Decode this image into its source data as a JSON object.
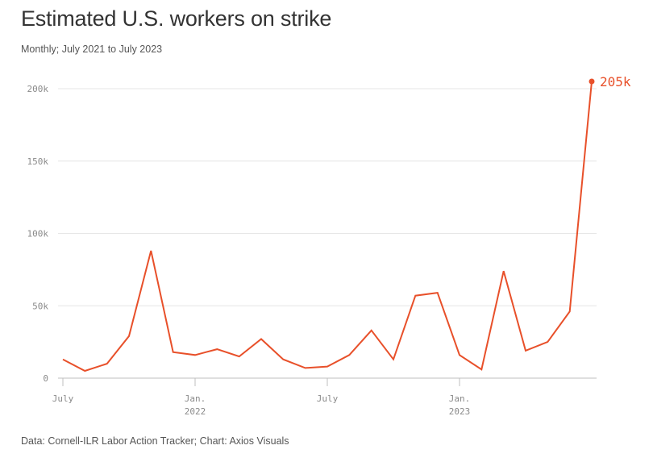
{
  "chart_data": {
    "type": "line",
    "title": "Estimated U.S. workers on strike",
    "subtitle": "Monthly; July 2021 to July 2023",
    "source": "Data: Cornell-ILR Labor Action Tracker; Chart: Axios Visuals",
    "ylim": [
      0,
      205000
    ],
    "yticks": [
      {
        "value": 0,
        "label": "0"
      },
      {
        "value": 50000,
        "label": "50k"
      },
      {
        "value": 100000,
        "label": "100k"
      },
      {
        "value": 150000,
        "label": "150k"
      },
      {
        "value": 200000,
        "label": "200k"
      }
    ],
    "xticks": [
      {
        "index": 0,
        "label": "July",
        "sublabel": ""
      },
      {
        "index": 6,
        "label": "Jan.",
        "sublabel": "2022"
      },
      {
        "index": 12,
        "label": "July",
        "sublabel": ""
      },
      {
        "index": 18,
        "label": "Jan.",
        "sublabel": "2023"
      }
    ],
    "x": [
      "2021-07",
      "2021-08",
      "2021-09",
      "2021-10",
      "2021-11",
      "2021-12",
      "2022-01",
      "2022-02",
      "2022-03",
      "2022-04",
      "2022-05",
      "2022-06",
      "2022-07",
      "2022-08",
      "2022-09",
      "2022-10",
      "2022-11",
      "2022-12",
      "2023-01",
      "2023-02",
      "2023-03",
      "2023-04",
      "2023-05",
      "2023-06",
      "2023-07"
    ],
    "series": [
      {
        "values": [
          13000,
          5000,
          10000,
          29000,
          88000,
          18000,
          16000,
          20000,
          15000,
          27000,
          13000,
          7000,
          8000,
          16000,
          33000,
          13000,
          57000,
          59000,
          16000,
          6000,
          74000,
          19000,
          25000,
          46000,
          205000
        ],
        "color": "#e8502a"
      }
    ],
    "end_label": "205k",
    "grid": true,
    "colors": {
      "line": "#e8502a",
      "grid": "#e6e6e6",
      "axis": "#bfbfbf"
    }
  }
}
